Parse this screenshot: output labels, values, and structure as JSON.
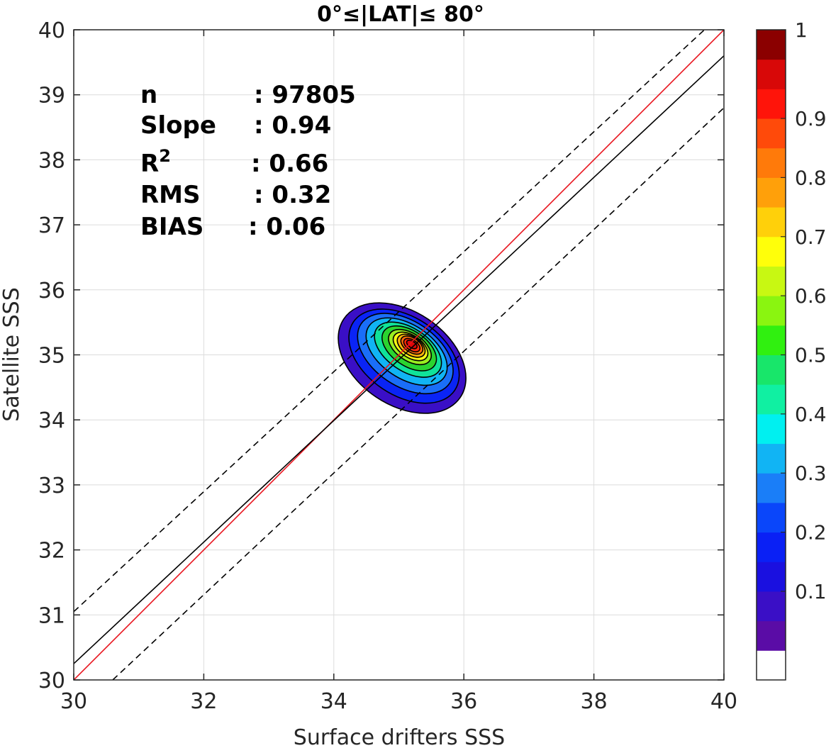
{
  "chart_data": {
    "type": "contour",
    "title": "0°≤|LAT|≤ 80°",
    "xlabel": "Surface drifters SSS",
    "ylabel": "Satellite SSS",
    "xlim": [
      30,
      40
    ],
    "ylim": [
      30,
      40
    ],
    "xticks": [
      30,
      32,
      34,
      36,
      38,
      40
    ],
    "yticks": [
      30,
      31,
      32,
      33,
      34,
      35,
      36,
      37,
      38,
      39,
      40
    ],
    "xtick_labels": [
      "30",
      "32",
      "34",
      "36",
      "38",
      "40"
    ],
    "ytick_labels": [
      "30",
      "31",
      "32",
      "33",
      "34",
      "35",
      "36",
      "37",
      "38",
      "39",
      "40"
    ],
    "grid": true,
    "stats": [
      {
        "label": "n",
        "value": ": 97805"
      },
      {
        "label": "Slope",
        "value": ": 0.94"
      },
      {
        "label": "R",
        "sup": "2",
        "value": ": 0.66"
      },
      {
        "label": "RMS",
        "value": ": 0.32"
      },
      {
        "label": "BIAS",
        "value": ": 0.06"
      }
    ],
    "lines": [
      {
        "kind": "one-to-one",
        "color": "#e8141e",
        "style": "solid",
        "points": [
          [
            30,
            30
          ],
          [
            40,
            40
          ]
        ]
      },
      {
        "kind": "regression",
        "color": "#000000",
        "style": "solid",
        "points": [
          [
            30,
            30.25
          ],
          [
            40,
            39.6
          ]
        ]
      },
      {
        "kind": "upper-bound",
        "color": "#000000",
        "style": "dashed",
        "points": [
          [
            30,
            31.05
          ],
          [
            39.7,
            40
          ]
        ]
      },
      {
        "kind": "lower-bound",
        "color": "#000000",
        "style": "dashed",
        "points": [
          [
            30.6,
            30
          ],
          [
            40,
            38.8
          ]
        ]
      }
    ],
    "density_center": [
      35.2,
      35.15
    ],
    "contour_levels": [
      {
        "level": 0.05,
        "rx": 0.72,
        "ry": 1.08,
        "angle": -56,
        "cx": 35.05,
        "cy": 34.95,
        "color": "#3a0fc6"
      },
      {
        "level": 0.15,
        "rx": 0.6,
        "ry": 0.94,
        "angle": -56,
        "cx": 35.08,
        "cy": 34.98,
        "color": "#0a24f5"
      },
      {
        "level": 0.25,
        "rx": 0.5,
        "ry": 0.82,
        "angle": -56,
        "cx": 35.1,
        "cy": 35.02,
        "color": "#1a6ef8"
      },
      {
        "level": 0.35,
        "rx": 0.41,
        "ry": 0.7,
        "angle": -56,
        "cx": 35.12,
        "cy": 35.05,
        "color": "#11b4f4"
      },
      {
        "level": 0.45,
        "rx": 0.33,
        "ry": 0.58,
        "angle": -56,
        "cx": 35.14,
        "cy": 35.08,
        "color": "#10e29a"
      },
      {
        "level": 0.55,
        "rx": 0.27,
        "ry": 0.47,
        "angle": -56,
        "cx": 35.16,
        "cy": 35.1,
        "color": "#2bd430"
      },
      {
        "level": 0.65,
        "rx": 0.21,
        "ry": 0.37,
        "angle": -56,
        "cx": 35.17,
        "cy": 35.12,
        "color": "#9bee20"
      },
      {
        "level": 0.7,
        "rx": 0.17,
        "ry": 0.3,
        "angle": -56,
        "cx": 35.18,
        "cy": 35.13,
        "color": "#f6f815"
      },
      {
        "level": 0.75,
        "rx": 0.14,
        "ry": 0.24,
        "angle": -56,
        "cx": 35.19,
        "cy": 35.14,
        "color": "#fbb40a"
      },
      {
        "level": 0.8,
        "rx": 0.11,
        "ry": 0.19,
        "angle": -56,
        "cx": 35.2,
        "cy": 35.15,
        "color": "#ff6a0a"
      },
      {
        "level": 0.85,
        "rx": 0.08,
        "ry": 0.14,
        "angle": -56,
        "cx": 35.2,
        "cy": 35.15,
        "color": "#ff2a0a"
      },
      {
        "level": 0.9,
        "rx": 0.05,
        "ry": 0.09,
        "angle": -56,
        "cx": 35.2,
        "cy": 35.16,
        "color": "#e00808"
      }
    ],
    "colorbar": {
      "colors": [
        "#ffffff",
        "#5a0ca6",
        "#3a0fc6",
        "#1a10e0",
        "#0a20f5",
        "#0a46fa",
        "#1a7ef8",
        "#11b4f4",
        "#00f0f0",
        "#10f0a2",
        "#18e66a",
        "#30f010",
        "#8af510",
        "#c8f812",
        "#ffff0a",
        "#ffd00a",
        "#ffa00a",
        "#ff7a0a",
        "#ff4a0a",
        "#ff140a",
        "#d80808",
        "#8b0000"
      ],
      "tick_values": [
        0.1,
        0.2,
        0.3,
        0.4,
        0.5,
        0.6,
        0.7,
        0.8,
        0.9,
        1
      ],
      "tick_labels": [
        "0.1",
        "0.2",
        "0.3",
        "0.4",
        "0.5",
        "0.6",
        "0.7",
        "0.8",
        "0.9",
        "1"
      ]
    }
  }
}
